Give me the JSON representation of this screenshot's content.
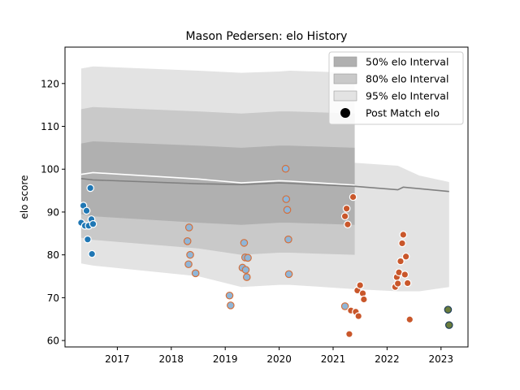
{
  "chart_data": {
    "type": "scatter",
    "title": "Mason Pedersen: elo History",
    "xlabel": "",
    "ylabel": "elo score",
    "xlim": [
      2016.03,
      2023.5
    ],
    "ylim": [
      58.5,
      128.5
    ],
    "x_ticks": [
      2017,
      2018,
      2019,
      2020,
      2021,
      2022,
      2023
    ],
    "y_ticks": [
      60,
      70,
      80,
      90,
      100,
      110,
      120
    ],
    "grid": false,
    "legend_position": "top-right",
    "legend": [
      {
        "label": "50% elo Interval",
        "kind": "band",
        "color": "#b0b0b0"
      },
      {
        "label": "80% elo Interval",
        "kind": "band",
        "color": "#c9c9c9"
      },
      {
        "label": "95% elo Interval",
        "kind": "band",
        "color": "#e3e3e3"
      },
      {
        "label": "Post Match elo",
        "kind": "marker",
        "color": "#000000"
      }
    ],
    "bands": [
      {
        "name": "95% elo Interval",
        "color": "#e3e3e3",
        "x": [
          2016.33,
          2016.55,
          2018.5,
          2019.3,
          2020.0,
          2020.2,
          2021.4,
          2021.4,
          2022.2,
          2022.6,
          2023.15
        ],
        "upper": [
          123.5,
          124.0,
          123.0,
          122.5,
          122.8,
          123.0,
          122.5,
          101.5,
          100.8,
          98.5,
          97.0
        ],
        "lower": [
          78.0,
          77.5,
          75.0,
          72.5,
          73.0,
          73.0,
          72.0,
          72.0,
          71.5,
          71.5,
          72.5
        ]
      },
      {
        "name": "80% elo Interval",
        "color": "#c9c9c9",
        "x": [
          2016.33,
          2016.55,
          2018.5,
          2019.3,
          2020.0,
          2020.2,
          2021.4
        ],
        "upper": [
          114.0,
          114.5,
          113.5,
          113.0,
          113.5,
          113.5,
          113.0
        ],
        "lower": [
          84.0,
          83.5,
          81.5,
          80.0,
          80.5,
          80.5,
          80.0
        ]
      },
      {
        "name": "50% elo Interval",
        "color": "#b0b0b0",
        "x": [
          2016.33,
          2016.55,
          2018.5,
          2019.3,
          2020.0,
          2020.2,
          2021.4
        ],
        "upper": [
          106.0,
          106.5,
          105.5,
          105.0,
          105.5,
          105.5,
          105.0
        ],
        "lower": [
          89.5,
          89.0,
          87.5,
          87.0,
          87.5,
          87.5,
          87.0
        ]
      }
    ],
    "mean_lines": [
      {
        "color": "#ffffff",
        "x": [
          2016.33,
          2016.55,
          2018.5,
          2019.3,
          2020.0,
          2020.2,
          2021.4
        ],
        "y": [
          98.8,
          99.2,
          97.7,
          96.8,
          97.3,
          97.2,
          96.3
        ]
      },
      {
        "color": "#808080",
        "x": [
          2016.33,
          2016.55,
          2018.5,
          2019.3,
          2020.0,
          2020.2,
          2021.4,
          2022.2,
          2022.3,
          2023.15
        ],
        "y": [
          97.8,
          97.5,
          96.6,
          96.4,
          96.8,
          96.7,
          96.0,
          95.2,
          95.8,
          94.8
        ]
      }
    ],
    "series": [
      {
        "name": "Post Match elo",
        "fill": "#1f77b4",
        "stroke": "#ffffff",
        "x": [
          2016.33,
          2016.37,
          2016.4,
          2016.43,
          2016.45,
          2016.47,
          2016.5,
          2016.52,
          2016.53,
          2016.55
        ],
        "y": [
          87.5,
          91.5,
          86.8,
          90.3,
          83.6,
          86.8,
          95.6,
          88.3,
          80.2,
          87.2
        ]
      },
      {
        "name": "",
        "fill": "#8fb6d8",
        "stroke": "#d4703c",
        "x": [
          2018.3,
          2018.32,
          2018.33,
          2018.35,
          2018.45,
          2019.08,
          2019.1,
          2019.32,
          2019.35,
          2019.37,
          2019.38,
          2019.4,
          2019.42,
          2020.12,
          2020.13,
          2020.15,
          2020.17,
          2020.18,
          2021.22
        ],
        "y": [
          83.2,
          77.8,
          86.4,
          80.0,
          75.7,
          70.5,
          68.2,
          77.0,
          82.8,
          79.4,
          76.5,
          74.8,
          79.3,
          100.1,
          93.0,
          90.5,
          83.6,
          75.5,
          68.0
        ]
      },
      {
        "name": "",
        "fill": "#c9572b",
        "stroke": "#ffffff",
        "x": [
          2021.22,
          2021.25,
          2021.27,
          2021.3,
          2021.33,
          2021.37,
          2021.42,
          2021.45,
          2021.47,
          2021.5,
          2021.55,
          2021.57,
          2022.15,
          2022.18,
          2022.2,
          2022.22,
          2022.25,
          2022.28,
          2022.3,
          2022.33,
          2022.35,
          2022.38,
          2022.42
        ],
        "y": [
          89.0,
          90.8,
          87.1,
          61.5,
          67.0,
          93.5,
          66.7,
          71.7,
          65.7,
          72.9,
          71.0,
          69.6,
          72.5,
          74.8,
          73.3,
          75.9,
          78.5,
          82.7,
          84.7,
          75.4,
          79.6,
          73.4,
          64.9
        ]
      },
      {
        "name": "",
        "fill": "#6b7d3c",
        "stroke": "#1f3e5a",
        "x": [
          2023.13,
          2023.15
        ],
        "y": [
          67.2,
          63.6
        ]
      }
    ]
  }
}
